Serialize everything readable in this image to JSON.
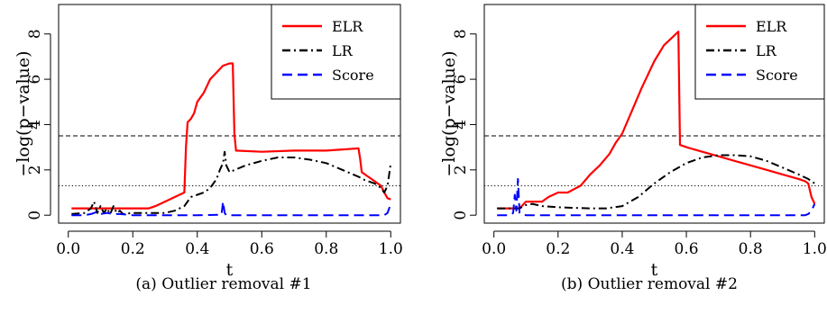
{
  "chart_data": [
    {
      "type": "line",
      "caption": "(a) Outlier removal #1",
      "xlabel": "t",
      "ylabel": "−log(p−value)",
      "xlim": [
        -0.03,
        1.03
      ],
      "ylim": [
        -0.35,
        9.3
      ],
      "xticks": [
        "0.0",
        "0.2",
        "0.4",
        "0.6",
        "0.8",
        "1.0"
      ],
      "yticks": [
        "0",
        "2",
        "4",
        "6",
        "8"
      ],
      "hlines": [
        {
          "y": 3.5,
          "style": "dashed"
        },
        {
          "y": 1.3,
          "style": "dotted"
        }
      ],
      "legend": {
        "position": "top-right",
        "entries": [
          "ELR",
          "LR",
          "Score"
        ]
      },
      "series": [
        {
          "name": "ELR",
          "color": "#ff0000",
          "style": "solid",
          "x": [
            0.01,
            0.25,
            0.27,
            0.3,
            0.33,
            0.36,
            0.365,
            0.37,
            0.38,
            0.39,
            0.4,
            0.42,
            0.44,
            0.46,
            0.48,
            0.5,
            0.51,
            0.515,
            0.52,
            0.6,
            0.7,
            0.8,
            0.9,
            0.905,
            0.91,
            0.93,
            0.95,
            0.97,
            0.98,
            0.99,
            1.0
          ],
          "y": [
            0.3,
            0.3,
            0.4,
            0.6,
            0.8,
            1.0,
            3.0,
            4.1,
            4.25,
            4.5,
            5.0,
            5.4,
            6.0,
            6.3,
            6.6,
            6.7,
            6.7,
            3.6,
            2.85,
            2.8,
            2.85,
            2.85,
            2.95,
            2.5,
            1.9,
            1.7,
            1.5,
            1.3,
            1.0,
            0.75,
            0.7
          ]
        },
        {
          "name": "LR",
          "color": "#000000",
          "style": "dashdot",
          "x": [
            0.01,
            0.05,
            0.07,
            0.08,
            0.09,
            0.1,
            0.11,
            0.12,
            0.13,
            0.14,
            0.15,
            0.16,
            0.17,
            0.2,
            0.25,
            0.28,
            0.3,
            0.33,
            0.36,
            0.38,
            0.4,
            0.42,
            0.44,
            0.46,
            0.47,
            0.48,
            0.485,
            0.49,
            0.5,
            0.55,
            0.6,
            0.65,
            0.7,
            0.75,
            0.8,
            0.85,
            0.9,
            0.92,
            0.95,
            0.97,
            0.98,
            0.99,
            1.0
          ],
          "y": [
            0.05,
            0.1,
            0.3,
            0.6,
            0.1,
            0.4,
            0.1,
            0.3,
            0.05,
            0.4,
            0.1,
            0.2,
            0.05,
            0.1,
            0.1,
            0.1,
            0.1,
            0.2,
            0.4,
            0.8,
            0.9,
            1.0,
            1.2,
            1.6,
            2.0,
            2.3,
            2.8,
            2.2,
            1.9,
            2.2,
            2.4,
            2.55,
            2.55,
            2.45,
            2.3,
            2.0,
            1.7,
            1.55,
            1.4,
            1.2,
            1.0,
            1.3,
            2.3
          ]
        },
        {
          "name": "Score",
          "color": "#0000ff",
          "style": "dashed",
          "x": [
            0.01,
            0.05,
            0.07,
            0.09,
            0.1,
            0.12,
            0.14,
            0.16,
            0.2,
            0.4,
            0.475,
            0.48,
            0.485,
            0.49,
            0.6,
            0.8,
            0.98,
            0.99,
            1.0
          ],
          "y": [
            0.0,
            0.0,
            0.05,
            0.15,
            0.05,
            0.1,
            0.05,
            0.05,
            0.0,
            0.0,
            0.02,
            0.6,
            0.1,
            0.0,
            0.0,
            0.0,
            0.0,
            0.1,
            0.5
          ]
        }
      ]
    },
    {
      "type": "line",
      "caption": "(b) Outlier removal #2",
      "xlabel": "t",
      "ylabel": "−log(p−value)",
      "xlim": [
        -0.03,
        1.03
      ],
      "ylim": [
        -0.35,
        9.3
      ],
      "xticks": [
        "0.0",
        "0.2",
        "0.4",
        "0.6",
        "0.8",
        "1.0"
      ],
      "yticks": [
        "0",
        "2",
        "4",
        "6",
        "8"
      ],
      "hlines": [
        {
          "y": 3.5,
          "style": "dashed"
        },
        {
          "y": 1.3,
          "style": "dotted"
        }
      ],
      "legend": {
        "position": "top-right",
        "entries": [
          "ELR",
          "LR",
          "Score"
        ]
      },
      "series": [
        {
          "name": "ELR",
          "color": "#ff0000",
          "style": "solid",
          "x": [
            0.01,
            0.08,
            0.1,
            0.15,
            0.17,
            0.2,
            0.23,
            0.25,
            0.27,
            0.3,
            0.33,
            0.36,
            0.38,
            0.4,
            0.43,
            0.46,
            0.5,
            0.53,
            0.56,
            0.575,
            0.58,
            0.6,
            0.65,
            0.7,
            0.75,
            0.8,
            0.85,
            0.9,
            0.95,
            0.97,
            0.98,
            0.99,
            1.0
          ],
          "y": [
            0.3,
            0.3,
            0.6,
            0.6,
            0.8,
            1.0,
            1.0,
            1.15,
            1.3,
            1.8,
            2.2,
            2.7,
            3.2,
            3.6,
            4.6,
            5.6,
            6.8,
            7.5,
            7.9,
            8.1,
            3.1,
            3.0,
            2.8,
            2.6,
            2.4,
            2.2,
            2.0,
            1.8,
            1.6,
            1.5,
            1.4,
            0.8,
            0.5
          ]
        },
        {
          "name": "LR",
          "color": "#000000",
          "style": "dashdot",
          "x": [
            0.01,
            0.08,
            0.1,
            0.12,
            0.15,
            0.2,
            0.3,
            0.35,
            0.4,
            0.45,
            0.5,
            0.55,
            0.6,
            0.65,
            0.7,
            0.75,
            0.8,
            0.85,
            0.9,
            0.95,
            0.98,
            1.0
          ],
          "y": [
            0.3,
            0.3,
            0.45,
            0.5,
            0.4,
            0.35,
            0.3,
            0.3,
            0.4,
            0.8,
            1.4,
            1.9,
            2.3,
            2.55,
            2.65,
            2.65,
            2.6,
            2.4,
            2.1,
            1.8,
            1.6,
            1.4
          ]
        },
        {
          "name": "Score",
          "color": "#0000ff",
          "style": "dashed",
          "x": [
            0.01,
            0.05,
            0.06,
            0.065,
            0.07,
            0.075,
            0.08,
            0.1,
            0.3,
            0.6,
            0.97,
            0.98,
            0.99,
            1.0
          ],
          "y": [
            0.0,
            0.0,
            0.1,
            0.9,
            0.2,
            1.6,
            0.1,
            0.0,
            0.0,
            0.0,
            0.0,
            0.05,
            0.2,
            0.5
          ]
        }
      ]
    }
  ]
}
